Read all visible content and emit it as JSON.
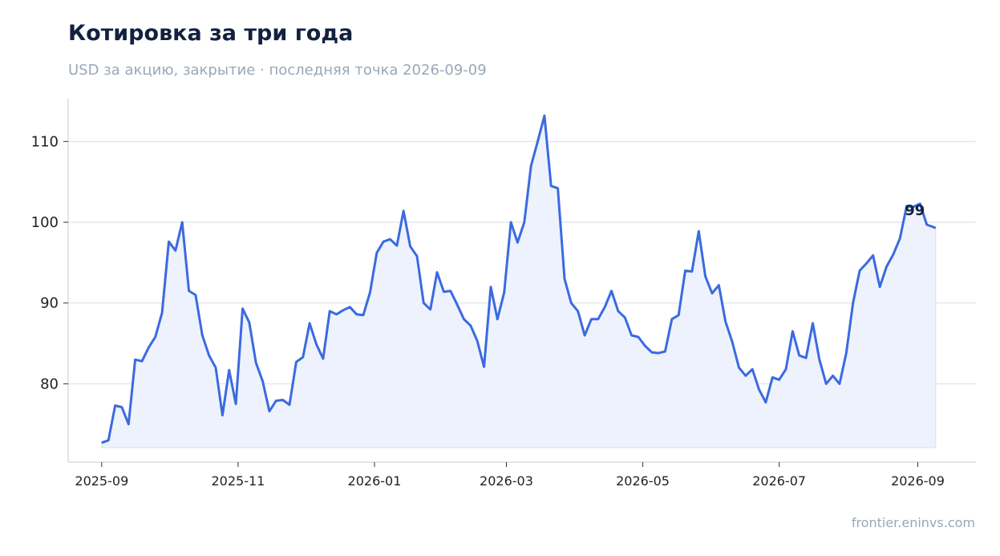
{
  "header": {
    "title": "Котировка за три года",
    "subtitle": "USD за акцию, закрытие · последняя точка 2026-09-09"
  },
  "footer": {
    "source": "frontier.eninvs.com"
  },
  "colors": {
    "line": "#3b6ae0",
    "fill": "#edf2fd",
    "grid": "#e3e7ee",
    "axis": "#d7dce4"
  },
  "chart_data": {
    "type": "area",
    "ylim": [
      70.3,
      115.3
    ],
    "yticks": [
      80,
      90,
      100,
      110
    ],
    "xlim": [
      "2025-08-17",
      "2026-09-27"
    ],
    "xticks": [
      "2025-09",
      "2025-11",
      "2026-01",
      "2026-03",
      "2026-05",
      "2026-07",
      "2026-09"
    ],
    "xlabel": "",
    "ylabel": "",
    "grid": "horizontal",
    "last_label": "99",
    "series": [
      {
        "x": [
          "2025-09-01",
          "2025-09-04",
          "2025-09-07",
          "2025-09-10",
          "2025-09-13",
          "2025-09-16",
          "2025-09-19",
          "2025-09-22",
          "2025-09-25",
          "2025-09-28",
          "2025-10-01",
          "2025-10-04",
          "2025-10-07",
          "2025-10-10",
          "2025-10-13",
          "2025-10-16",
          "2025-10-19",
          "2025-10-22",
          "2025-10-25",
          "2025-10-28",
          "2025-10-31",
          "2025-11-03",
          "2025-11-06",
          "2025-11-09",
          "2025-11-12",
          "2025-11-15",
          "2025-11-18",
          "2025-11-21",
          "2025-11-24",
          "2025-11-27",
          "2025-11-30",
          "2025-12-03",
          "2025-12-06",
          "2025-12-09",
          "2025-12-12",
          "2025-12-15",
          "2025-12-18",
          "2025-12-21",
          "2025-12-24",
          "2025-12-27",
          "2025-12-30",
          "2026-01-02",
          "2026-01-05",
          "2026-01-08",
          "2026-01-11",
          "2026-01-14",
          "2026-01-17",
          "2026-01-20",
          "2026-01-23",
          "2026-01-26",
          "2026-01-29",
          "2026-02-01",
          "2026-02-04",
          "2026-02-07",
          "2026-02-10",
          "2026-02-13",
          "2026-02-16",
          "2026-02-19",
          "2026-02-22",
          "2026-02-25",
          "2026-02-28",
          "2026-03-03",
          "2026-03-06",
          "2026-03-09",
          "2026-03-12",
          "2026-03-15",
          "2026-03-18",
          "2026-03-21",
          "2026-03-24",
          "2026-03-27",
          "2026-03-30",
          "2026-04-02",
          "2026-04-05",
          "2026-04-08",
          "2026-04-11",
          "2026-04-14",
          "2026-04-17",
          "2026-04-20",
          "2026-04-23",
          "2026-04-26",
          "2026-04-29",
          "2026-05-02",
          "2026-05-05",
          "2026-05-08",
          "2026-05-11",
          "2026-05-14",
          "2026-05-17",
          "2026-05-20",
          "2026-05-23",
          "2026-05-26",
          "2026-05-29",
          "2026-06-01",
          "2026-06-04",
          "2026-06-07",
          "2026-06-10",
          "2026-06-13",
          "2026-06-16",
          "2026-06-19",
          "2026-06-22",
          "2026-06-25",
          "2026-06-28",
          "2026-07-01",
          "2026-07-04",
          "2026-07-07",
          "2026-07-10",
          "2026-07-13",
          "2026-07-16",
          "2026-07-19",
          "2026-07-22",
          "2026-07-25",
          "2026-07-28",
          "2026-07-31",
          "2026-08-03",
          "2026-08-06",
          "2026-08-09",
          "2026-08-12",
          "2026-08-15",
          "2026-08-18",
          "2026-08-21",
          "2026-08-24",
          "2026-08-27",
          "2026-08-30",
          "2026-09-02",
          "2026-09-05",
          "2026-09-09"
        ],
        "values": [
          72.7,
          73.0,
          77.3,
          77.1,
          75.0,
          83.0,
          82.8,
          84.5,
          85.8,
          88.8,
          97.6,
          96.5,
          100.0,
          91.5,
          91.0,
          86.0,
          83.5,
          82.0,
          76.1,
          81.7,
          77.5,
          89.3,
          87.6,
          82.6,
          80.3,
          76.6,
          77.9,
          78.0,
          77.4,
          82.7,
          83.3,
          87.5,
          84.9,
          83.1,
          89.0,
          88.6,
          89.1,
          89.5,
          88.6,
          88.5,
          91.3,
          96.2,
          97.6,
          97.9,
          97.1,
          101.4,
          97.0,
          95.8,
          90.0,
          89.2,
          93.8,
          91.4,
          91.5,
          89.8,
          88.0,
          87.2,
          85.3,
          82.1,
          92.0,
          88.0,
          91.3,
          100.0,
          97.5,
          100.0,
          107.0,
          110.0,
          113.2,
          104.5,
          104.2,
          93.0,
          90.0,
          89.0,
          86.0,
          88.0,
          88.0,
          89.5,
          91.5,
          89.0,
          88.2,
          86.0,
          85.8,
          84.7,
          83.9,
          83.8,
          84.0,
          88.0,
          88.5,
          94.0,
          93.9,
          98.9,
          93.3,
          91.2,
          92.2,
          87.7,
          85.2,
          82.0,
          81.0,
          81.8,
          79.3,
          77.7,
          80.8,
          80.5,
          81.8,
          86.5,
          83.5,
          83.2,
          87.5,
          83.0,
          80.0,
          81.0,
          80.0,
          83.8,
          90.0,
          94.0,
          94.9,
          95.9,
          92.0,
          94.5,
          96.0,
          98.0,
          102.0,
          101.9,
          102.3,
          99.7,
          99.3
        ]
      }
    ]
  }
}
